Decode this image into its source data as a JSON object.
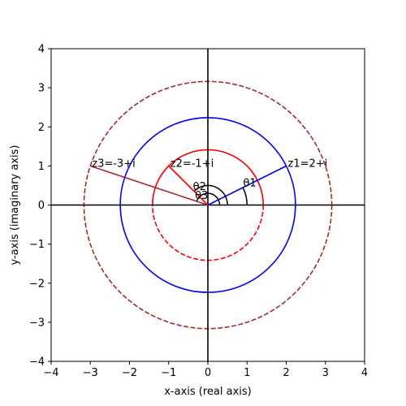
{
  "chart_data": {
    "type": "line",
    "xlabel": "x-axis (real axis)",
    "ylabel": "y-axis (imaginary axis)",
    "xlim": [
      -4,
      4
    ],
    "ylim": [
      -4,
      4
    ],
    "xticks": [
      -4,
      -3,
      -2,
      -1,
      0,
      1,
      2,
      3,
      4
    ],
    "yticks": [
      -4,
      -3,
      -2,
      -1,
      0,
      1,
      2,
      3,
      4
    ],
    "grid": false,
    "series": [
      {
        "name": "z1=2+i",
        "point": [
          2,
          1
        ],
        "modulus": 2.2360679775,
        "color": "#0000ff",
        "circle_style": "solid"
      },
      {
        "name": "z2=-1+i",
        "point": [
          -1,
          1
        ],
        "modulus": 1.41421356237,
        "color": "#ff0000",
        "circle_style": "solid-upper-dashed-lower"
      },
      {
        "name": "z3=-3+i",
        "point": [
          -3,
          1
        ],
        "modulus": 3.16227766017,
        "color": "#a52a2a",
        "circle_style": "dashed"
      }
    ],
    "angle_labels": [
      "θ1",
      "θ2",
      "θ3"
    ]
  }
}
